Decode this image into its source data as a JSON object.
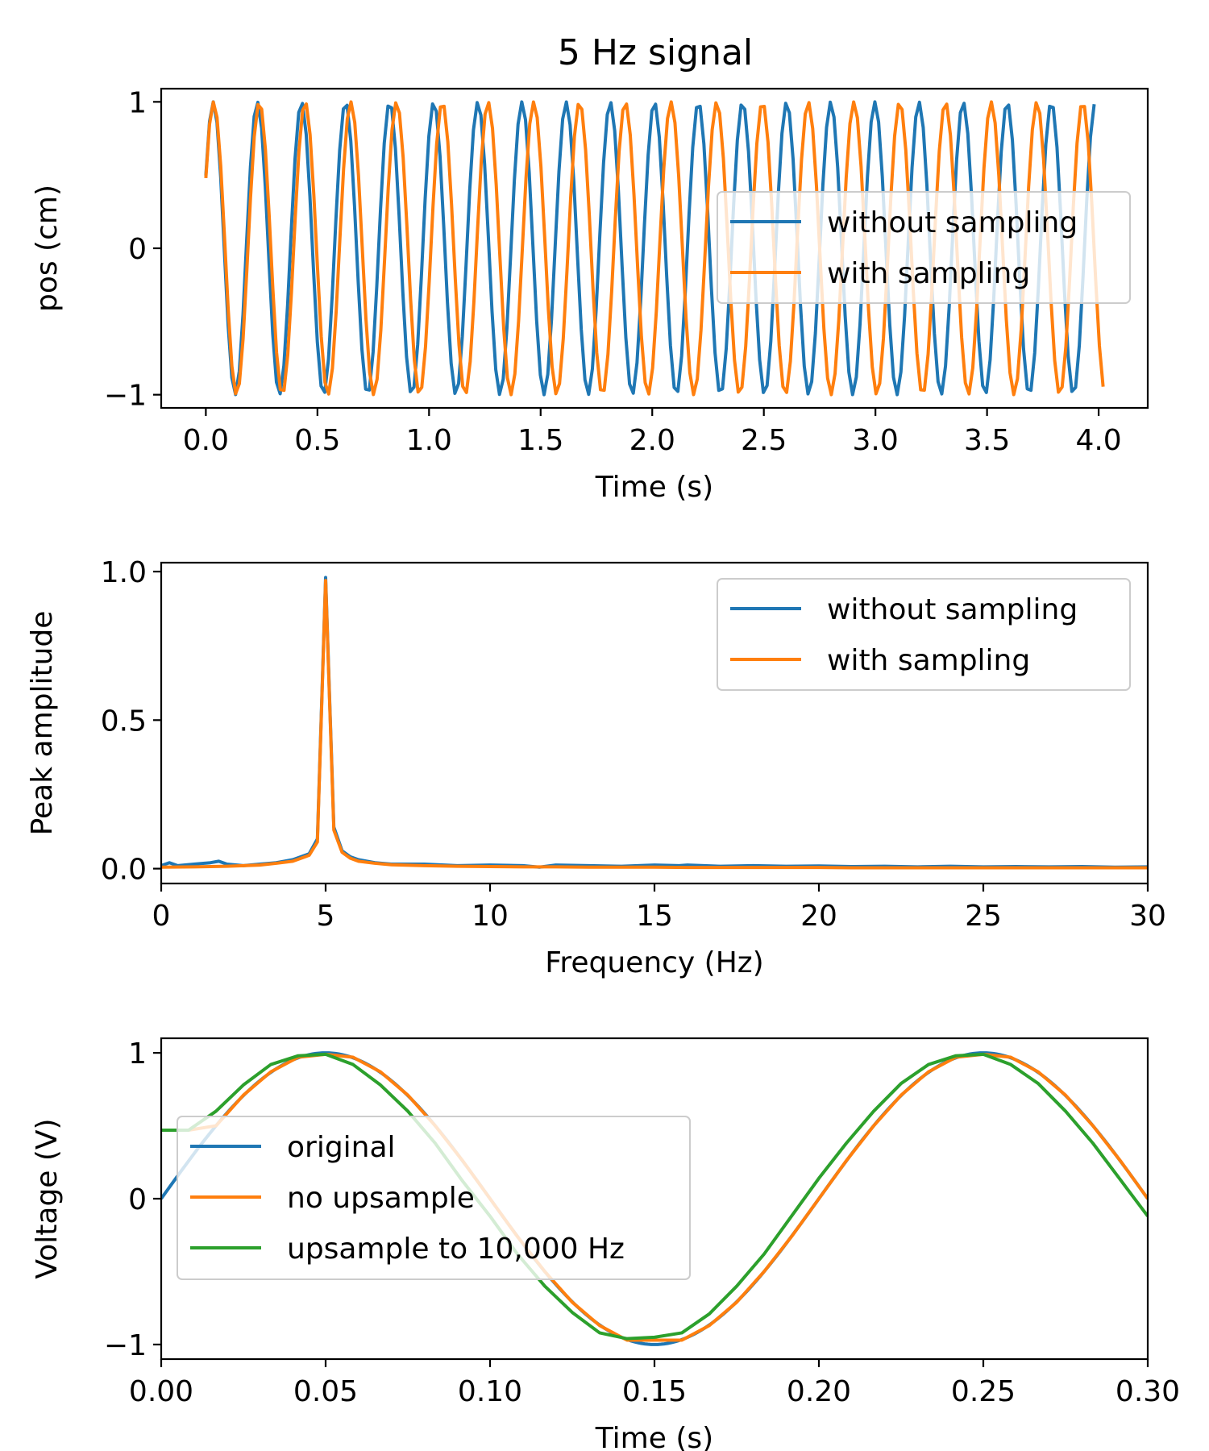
{
  "figure": {
    "title": "5 Hz signal"
  },
  "chart_data": [
    {
      "type": "line",
      "title": "5 Hz signal",
      "xlabel": "Time (s)",
      "ylabel": "pos (cm)",
      "xlim": [
        -0.2,
        4.22
      ],
      "ylim": [
        -1.09,
        1.09
      ],
      "x_ticks": [
        0.0,
        0.5,
        1.0,
        1.5,
        2.0,
        2.5,
        3.0,
        3.5,
        4.0
      ],
      "x_tick_labels": [
        "0.0",
        "0.5",
        "1.0",
        "1.5",
        "2.0",
        "2.5",
        "3.0",
        "3.5",
        "4.0"
      ],
      "y_ticks": [
        -1,
        0,
        1
      ],
      "y_tick_labels": [
        "−1",
        "0",
        "1"
      ],
      "grid": false,
      "legend_position": "center-right",
      "series": [
        {
          "name": "without sampling",
          "color": "#1f77b4",
          "frequency_hz": 5.06,
          "phase_rad": 0.52,
          "x_range": [
            0.0,
            3.98
          ],
          "samples_per_second": 60
        },
        {
          "name": "with sampling",
          "color": "#ff7f0e",
          "frequency_hz": 4.88,
          "phase_rad": 0.5,
          "x_range": [
            0.0,
            4.02
          ],
          "samples_per_second": 60
        }
      ]
    },
    {
      "type": "line",
      "title": "",
      "xlabel": "Frequency (Hz)",
      "ylabel": "Peak amplitude",
      "xlim": [
        0,
        30
      ],
      "ylim": [
        -0.05,
        1.03
      ],
      "x_ticks": [
        0,
        5,
        10,
        15,
        20,
        25,
        30
      ],
      "x_tick_labels": [
        "0",
        "5",
        "10",
        "15",
        "20",
        "25",
        "30"
      ],
      "y_ticks": [
        0.0,
        0.5,
        1.0
      ],
      "y_tick_labels": [
        "0.0",
        "0.5",
        "1.0"
      ],
      "grid": false,
      "legend_position": "top-right",
      "series": [
        {
          "name": "without sampling",
          "color": "#1f77b4",
          "x": [
            0,
            0.25,
            0.5,
            1,
            1.5,
            1.75,
            2,
            2.5,
            3,
            3.5,
            4,
            4.5,
            4.75,
            5.0,
            5.25,
            5.5,
            5.75,
            6,
            6.5,
            7,
            8,
            9,
            10,
            11,
            11.5,
            12,
            13,
            14,
            15,
            15.75,
            16,
            17,
            18,
            19,
            20,
            21,
            22,
            23,
            24,
            25,
            26,
            27,
            28,
            29,
            30
          ],
          "values": [
            0.01,
            0.02,
            0.01,
            0.015,
            0.02,
            0.025,
            0.015,
            0.01,
            0.015,
            0.02,
            0.03,
            0.05,
            0.1,
            0.98,
            0.14,
            0.06,
            0.04,
            0.03,
            0.02,
            0.015,
            0.015,
            0.01,
            0.012,
            0.01,
            0.005,
            0.012,
            0.01,
            0.008,
            0.012,
            0.01,
            0.012,
            0.008,
            0.01,
            0.008,
            0.009,
            0.007,
            0.008,
            0.006,
            0.008,
            0.006,
            0.007,
            0.006,
            0.007,
            0.005,
            0.006
          ]
        },
        {
          "name": "with sampling",
          "color": "#ff7f0e",
          "x": [
            0,
            1,
            2,
            3,
            3.5,
            4,
            4.5,
            4.75,
            5.0,
            5.25,
            5.5,
            5.75,
            6,
            6.5,
            7,
            8,
            9,
            10,
            11,
            12,
            13,
            14,
            15,
            16,
            17,
            18,
            19,
            20,
            21,
            22,
            23,
            24,
            25,
            26,
            27,
            28,
            29,
            30
          ],
          "values": [
            0.005,
            0.006,
            0.008,
            0.012,
            0.018,
            0.025,
            0.045,
            0.09,
            0.97,
            0.13,
            0.055,
            0.035,
            0.025,
            0.018,
            0.013,
            0.01,
            0.008,
            0.007,
            0.006,
            0.006,
            0.005,
            0.005,
            0.005,
            0.004,
            0.004,
            0.004,
            0.004,
            0.004,
            0.003,
            0.003,
            0.003,
            0.003,
            0.003,
            0.003,
            0.003,
            0.003,
            0.003,
            0.003
          ]
        }
      ]
    },
    {
      "type": "line",
      "title": "",
      "xlabel": "Time (s)",
      "ylabel": "Voltage (V)",
      "xlim": [
        0.0,
        0.3
      ],
      "ylim": [
        -1.1,
        1.1
      ],
      "x_ticks": [
        0.0,
        0.05,
        0.1,
        0.15,
        0.2,
        0.25,
        0.3
      ],
      "x_tick_labels": [
        "0.00",
        "0.05",
        "0.10",
        "0.15",
        "0.20",
        "0.25",
        "0.30"
      ],
      "y_ticks": [
        -1,
        0,
        1
      ],
      "y_tick_labels": [
        "−1",
        "0",
        "1"
      ],
      "grid": false,
      "legend_position": "center-left",
      "series": [
        {
          "name": "original",
          "color": "#1f77b4",
          "x": [
            0.0,
            0.3
          ],
          "frequency_hz": 5,
          "amplitude": 1,
          "phase_rad": 0
        },
        {
          "name": "no upsample",
          "color": "#ff7f0e",
          "x": [
            0.0,
            0.00833,
            0.01667,
            0.025,
            0.03333,
            0.04167,
            0.05,
            0.05833,
            0.06667,
            0.075,
            0.08333,
            0.09167,
            0.1,
            0.10833,
            0.11667,
            0.125,
            0.13333,
            0.14167,
            0.15,
            0.15833,
            0.16667,
            0.175,
            0.18333,
            0.19167,
            0.2,
            0.20833,
            0.21667,
            0.225,
            0.23333,
            0.24167,
            0.25,
            0.25833,
            0.26667,
            0.275,
            0.28333,
            0.29167,
            0.3
          ],
          "values": [
            0.47,
            0.47,
            0.5,
            0.71,
            0.87,
            0.97,
            0.99,
            0.97,
            0.87,
            0.71,
            0.5,
            0.26,
            0.0,
            -0.26,
            -0.5,
            -0.71,
            -0.87,
            -0.97,
            -0.97,
            -0.97,
            -0.87,
            -0.71,
            -0.5,
            -0.26,
            0.0,
            0.26,
            0.5,
            0.71,
            0.87,
            0.97,
            0.99,
            0.97,
            0.87,
            0.71,
            0.5,
            0.26,
            0.0
          ]
        },
        {
          "name": "upsample to 10,000 Hz",
          "color": "#2ca02c",
          "x": [
            0.0,
            0.00833,
            0.01667,
            0.025,
            0.03333,
            0.04167,
            0.05,
            0.05833,
            0.06667,
            0.075,
            0.08333,
            0.09167,
            0.1,
            0.10833,
            0.11667,
            0.125,
            0.13333,
            0.14167,
            0.15,
            0.15833,
            0.16667,
            0.175,
            0.18333,
            0.19167,
            0.2,
            0.20833,
            0.21667,
            0.225,
            0.23333,
            0.24167,
            0.25,
            0.25833,
            0.26667,
            0.275,
            0.28333,
            0.29167,
            0.3
          ],
          "values": [
            0.47,
            0.47,
            0.6,
            0.78,
            0.92,
            0.98,
            0.99,
            0.92,
            0.78,
            0.6,
            0.38,
            0.12,
            -0.12,
            -0.38,
            -0.6,
            -0.78,
            -0.92,
            -0.96,
            -0.95,
            -0.92,
            -0.79,
            -0.6,
            -0.38,
            -0.12,
            0.14,
            0.38,
            0.6,
            0.79,
            0.92,
            0.98,
            0.99,
            0.92,
            0.79,
            0.6,
            0.38,
            0.13,
            -0.12
          ]
        }
      ]
    }
  ]
}
